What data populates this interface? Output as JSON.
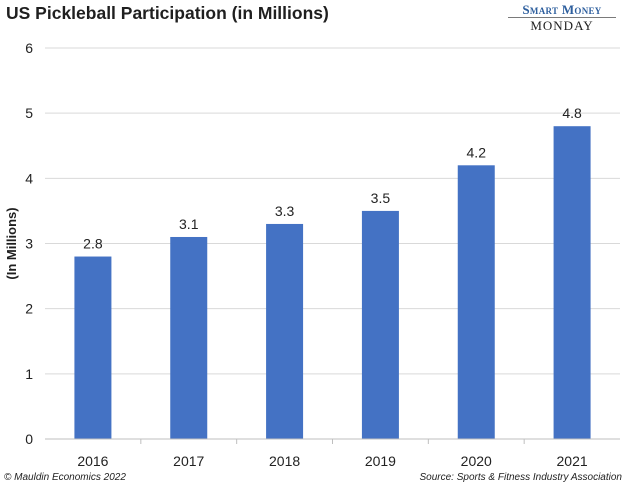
{
  "chart_data": {
    "type": "bar",
    "title": "US Pickleball Participation (in Millions)",
    "ylabel": "(In Millions)",
    "xlabel": "",
    "categories": [
      "2016",
      "2017",
      "2018",
      "2019",
      "2020",
      "2021"
    ],
    "values": [
      2.8,
      3.1,
      3.3,
      3.5,
      4.2,
      4.8
    ],
    "data_labels": [
      "2.8",
      "3.1",
      "3.3",
      "3.5",
      "4.2",
      "4.8"
    ],
    "ylim": [
      0,
      6
    ],
    "yticks": [
      "0",
      "1",
      "2",
      "3",
      "4",
      "5",
      "6"
    ],
    "grid": true,
    "legend": "none",
    "bar_color": "#4472C4",
    "grid_color": "#D9D9D9"
  },
  "branding": {
    "line1": "Smart Money",
    "line2": "MONDAY"
  },
  "footer": {
    "copyright": "© Mauldin Economics 2022",
    "source": "Source: Sports & Fitness Industry Association"
  }
}
